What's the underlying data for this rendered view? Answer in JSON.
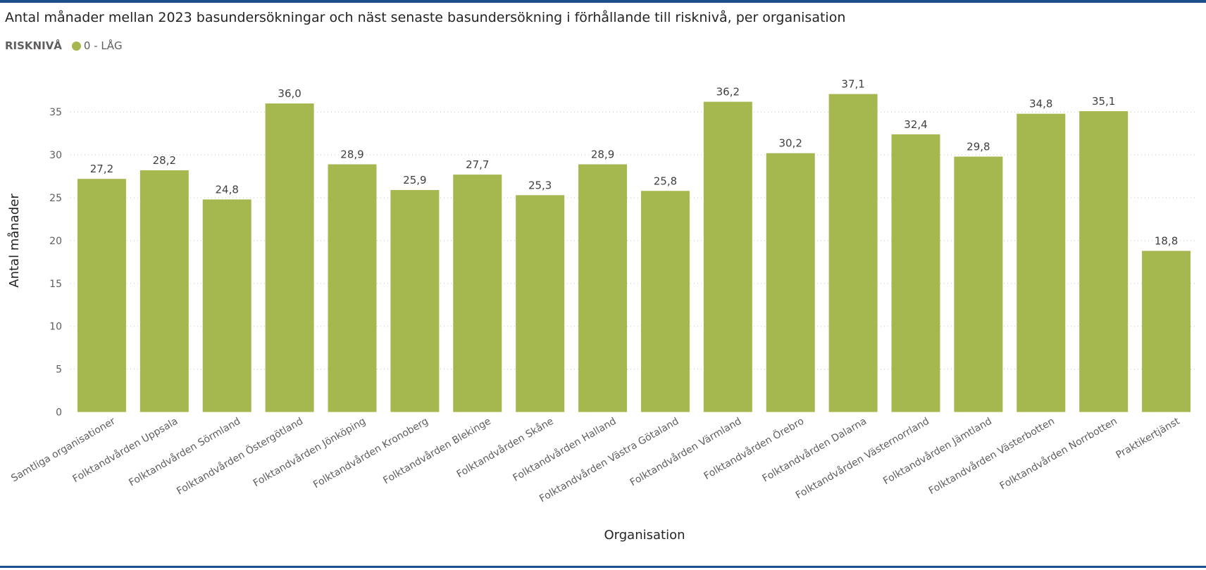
{
  "title": "Antal månader mellan 2023 basundersökningar och näst senaste basundersökning i förhållande till risknivå, per organisation",
  "legend": {
    "title": "RISKNIVÅ",
    "items": [
      {
        "label": "0 - LÅG",
        "color": "#a5b84f"
      }
    ]
  },
  "chart_data": {
    "type": "bar",
    "xlabel": "Organisation",
    "ylabel": "Antal månader",
    "ylim": [
      0,
      38
    ],
    "yticks": [
      0,
      5,
      10,
      15,
      20,
      25,
      30,
      35
    ],
    "grid": true,
    "legend_position": "top-left",
    "categories": [
      "Samtliga organisationer",
      "Folktandvården Uppsala",
      "Folktandvården Sörmland",
      "Folktandvården Östergötland",
      "Folktandvården Jönköping",
      "Folktandvården Kronoberg",
      "Folktandvården Blekinge",
      "Folktandvården Skåne",
      "Folktandvården Halland",
      "Folktandvården Västra Götaland",
      "Folktandvården Värmland",
      "Folktandvården Örebro",
      "Folktandvården Dalarna",
      "Folktandvården Västernorrland",
      "Folktandvården Jämtland",
      "Folktandvården Västerbotten",
      "Folktandvården Norrbotten",
      "Praktikertjänst"
    ],
    "series": [
      {
        "name": "0 - LÅG",
        "color": "#a5b84f",
        "values": [
          27.2,
          28.2,
          24.8,
          36.0,
          28.9,
          25.9,
          27.7,
          25.3,
          28.9,
          25.8,
          36.2,
          30.2,
          37.1,
          32.4,
          29.8,
          34.8,
          35.1,
          18.8
        ],
        "labels": [
          "27,2",
          "28,2",
          "24,8",
          "36,0",
          "28,9",
          "25,9",
          "27,7",
          "25,3",
          "28,9",
          "25,8",
          "36,2",
          "30,2",
          "37,1",
          "32,4",
          "29,8",
          "34,8",
          "35,1",
          "18,8"
        ]
      }
    ]
  }
}
